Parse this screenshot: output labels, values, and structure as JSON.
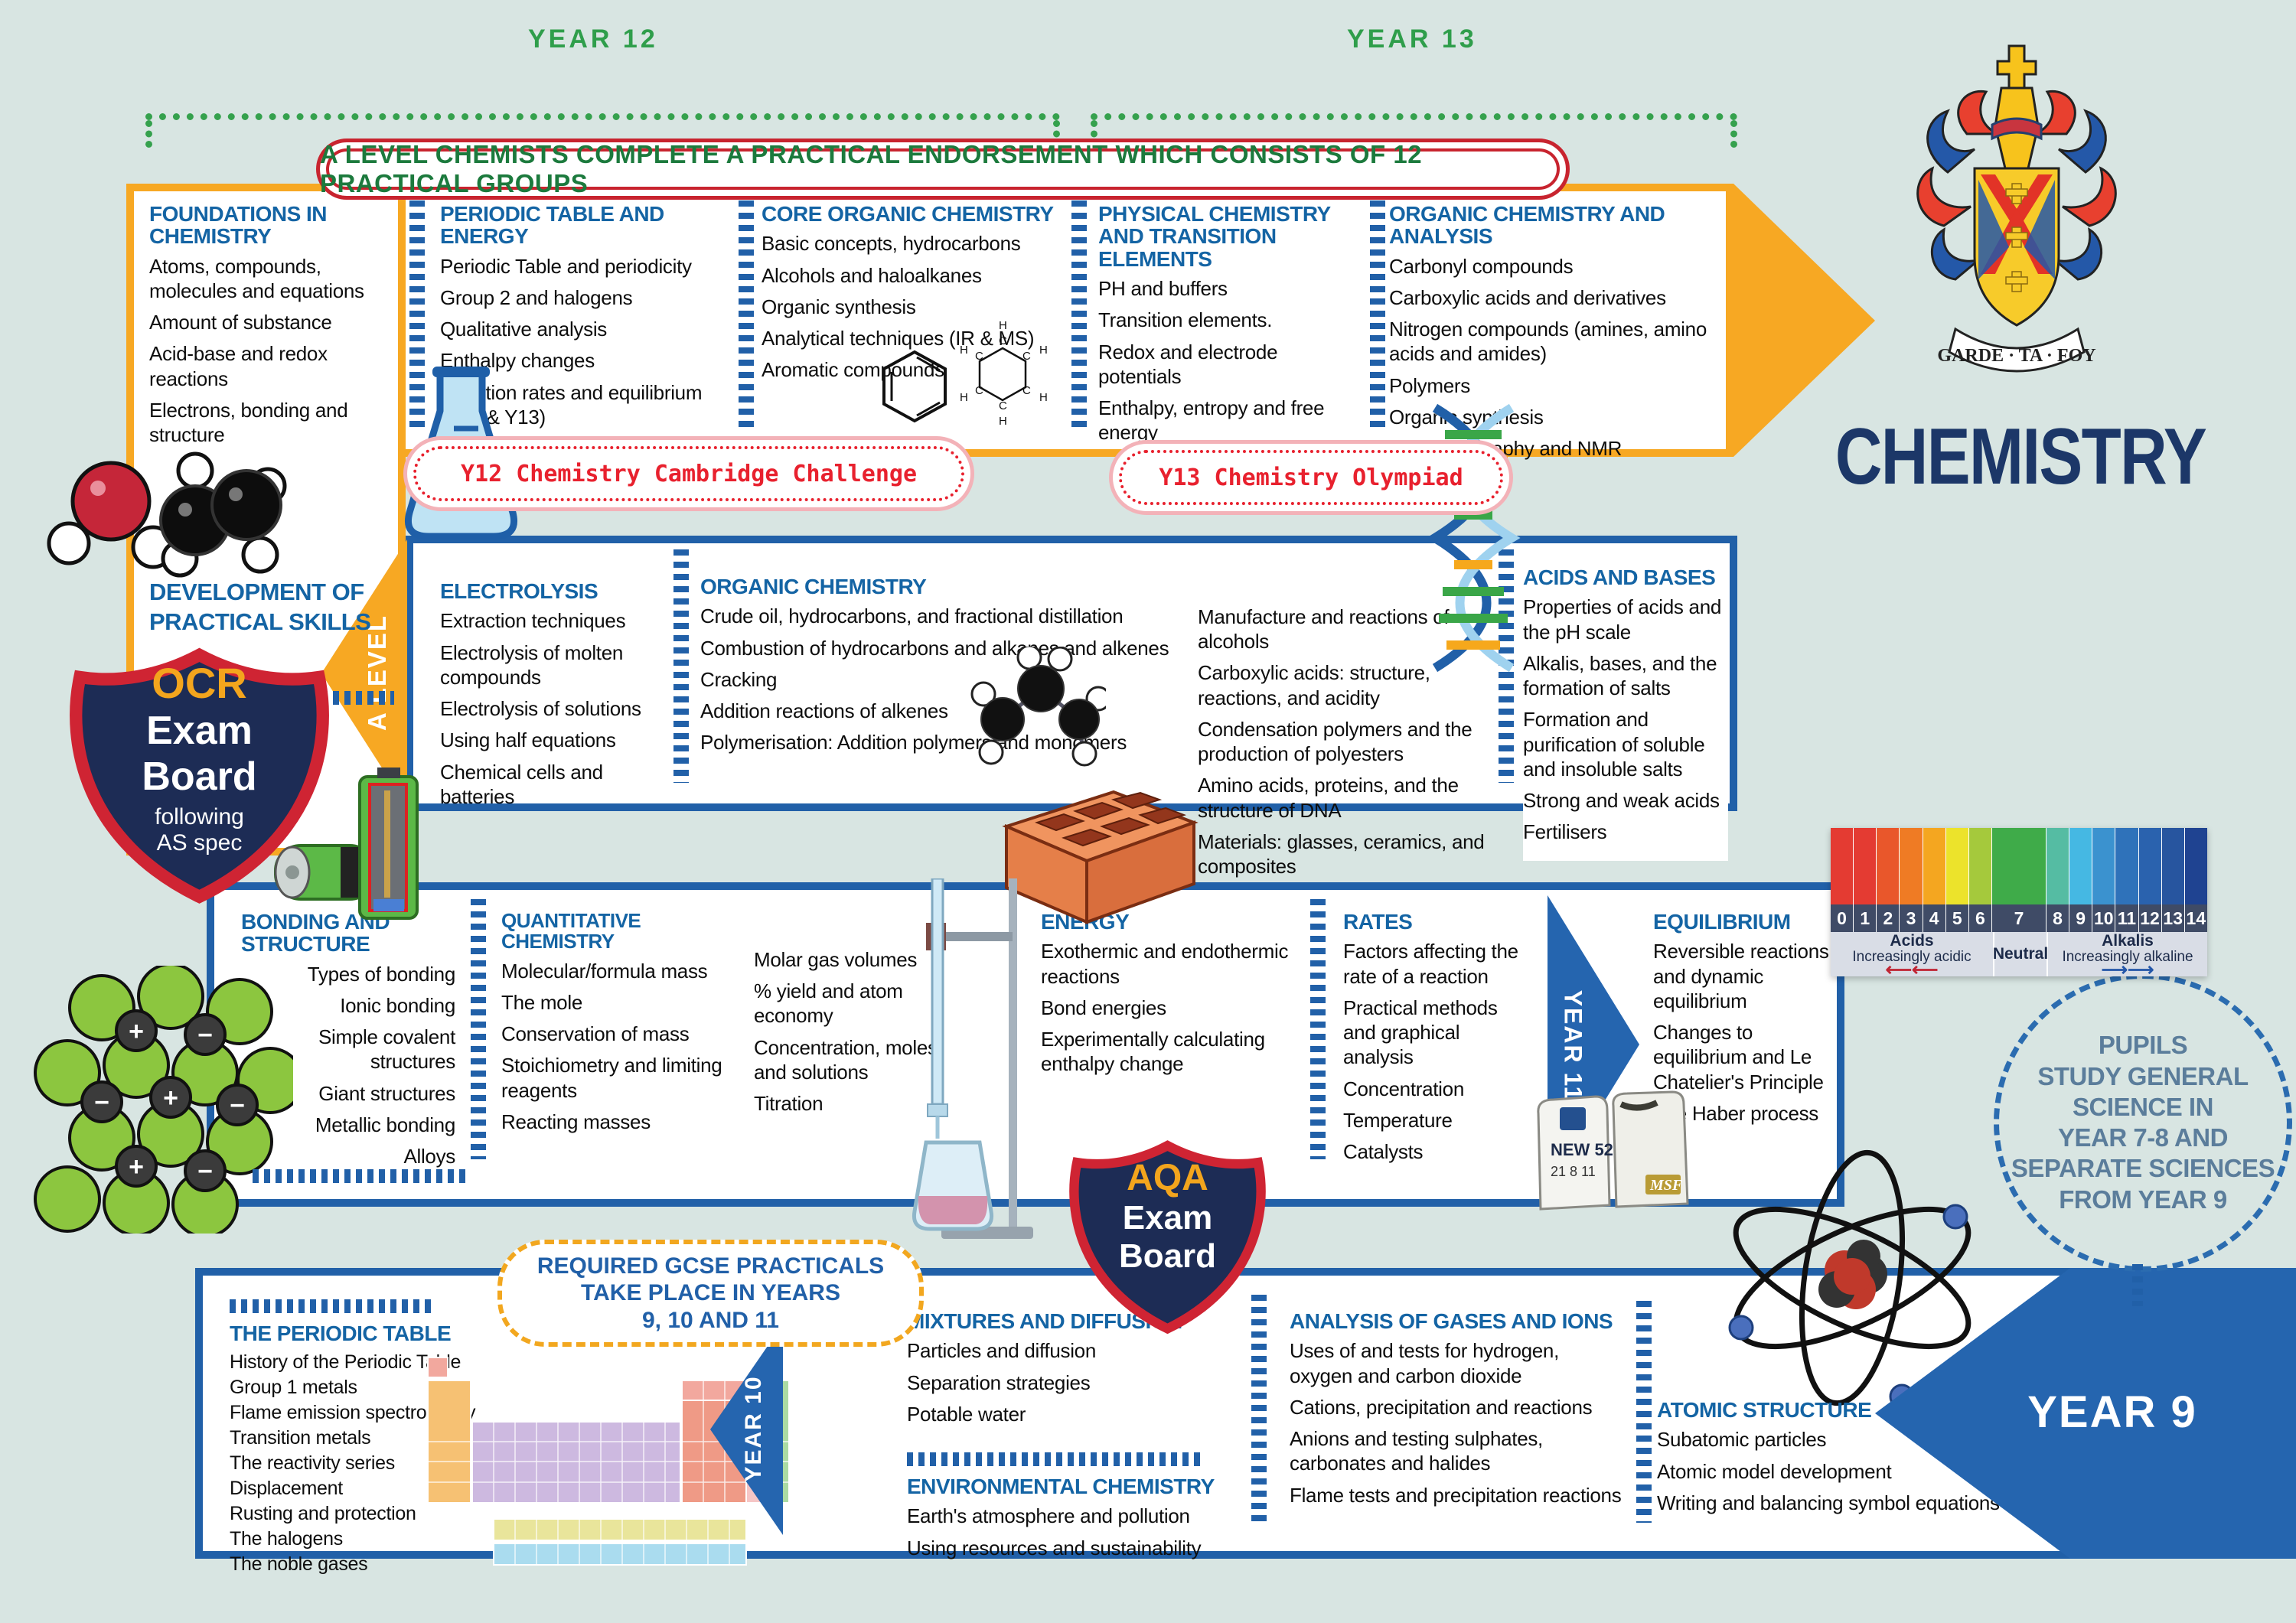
{
  "header": {
    "year12_label": "YEAR 12",
    "year13_label": "YEAR 13",
    "banner": "A LEVEL CHEMISTS COMPLETE A PRACTICAL ENDORSEMENT WHICH CONSISTS OF 12 PRACTICAL GROUPS",
    "title": "CHEMISTRY",
    "crest_motto": "GARDE · TA · FOY"
  },
  "challenges": {
    "y12": "Y12 Chemistry Cambridge Challenge",
    "y13": "Y13 Chemistry Olympiad"
  },
  "alevel": {
    "arrow_label": "A LEVEL",
    "practical_skills_title": "DEVELOPMENT OF PRACTICAL SKILLS",
    "row1": [
      {
        "title": "FOUNDATIONS IN CHEMISTRY",
        "items": [
          "Atoms, compounds, molecules and equations",
          "Amount of substance",
          "Acid-base and redox reactions",
          "Electrons, bonding and structure"
        ]
      },
      {
        "title": "PERIODIC TABLE AND ENERGY",
        "items": [
          "Periodic Table and periodicity",
          "Group 2 and halogens",
          "Qualitative analysis",
          "Enthalpy changes",
          "Reaction rates and equilibrium (Y12 & Y13)"
        ]
      },
      {
        "title": "CORE ORGANIC CHEMISTRY",
        "items": [
          "Basic concepts, hydrocarbons",
          "Alcohols and haloalkanes",
          "Organic synthesis",
          "Analytical techniques (IR & MS)",
          "Aromatic compounds"
        ]
      },
      {
        "title": "PHYSICAL CHEMISTRY AND TRANSITION ELEMENTS",
        "items": [
          "PH and buffers",
          "Transition elements.",
          "Redox and electrode potentials",
          "Enthalpy, entropy and free energy"
        ]
      },
      {
        "title": "ORGANIC CHEMISTRY AND ANALYSIS",
        "items": [
          "Carbonyl compounds",
          "Carboxylic acids and derivatives",
          "Nitrogen compounds (amines, amino acids and amides)",
          "Polymers",
          "Organic synthesis",
          "Chromatography and NMR"
        ]
      }
    ],
    "row2": [
      {
        "title": "ELECTROLYSIS",
        "items": [
          "Extraction techniques",
          "Electrolysis of molten compounds",
          "Electrolysis of solutions",
          "Using half equations",
          "Chemical cells and batteries"
        ]
      },
      {
        "title": "ORGANIC CHEMISTRY",
        "items": [
          "Crude oil, hydrocarbons, and fractional distillation",
          "Combustion of hydrocarbons and alkanes and alkenes",
          "Cracking",
          "Addition reactions of alkenes",
          "Polymerisation: Addition polymers and monomers"
        ]
      },
      {
        "title": "",
        "items": [
          "Manufacture and reactions of alcohols",
          "Carboxylic acids: structure, reactions, and acidity",
          "Condensation polymers and the production of polyesters",
          "Amino acids, proteins, and the structure of DNA",
          "Materials: glasses, ceramics, and composites"
        ]
      },
      {
        "title": "ACIDS AND BASES",
        "items": [
          "Properties of acids and the pH scale",
          "Alkalis, bases, and the formation of salts",
          "Formation and purification of soluble and insoluble salts",
          "Strong and weak acids",
          "Fertilisers"
        ]
      }
    ]
  },
  "exam_boards": {
    "ocr": {
      "name": "OCR",
      "line2": "Exam",
      "line3": "Board",
      "note1": "following",
      "note2": "AS spec"
    },
    "aqa": {
      "name": "AQA",
      "line2": "Exam",
      "line3": "Board"
    }
  },
  "gcse": {
    "year11_label": "YEAR 11",
    "year10_label": "YEAR 10",
    "year9_label": "YEAR 9",
    "required_practicals_lines": [
      "REQUIRED GCSE PRACTICALS",
      "TAKE PLACE IN YEARS",
      "9, 10 AND 11"
    ],
    "row1": [
      {
        "title": "BONDING AND STRUCTURE",
        "items": [
          "Types of bonding",
          "Ionic bonding",
          "Simple covalent structures",
          "Giant structures",
          "Metallic bonding",
          "Alloys"
        ]
      },
      {
        "title": "QUANTITATIVE CHEMISTRY",
        "items": [
          "Molecular/formula mass",
          "The mole",
          "Conservation of mass",
          "Stoichiometry and limiting reagents",
          "Reacting masses"
        ]
      },
      {
        "title": "",
        "items": [
          "Molar gas volumes",
          "% yield and atom economy",
          "Concentration, moles and solutions",
          "Titration"
        ]
      },
      {
        "title": "ENERGY",
        "items": [
          "Exothermic and endothermic reactions",
          "Bond energies",
          "Experimentally calculating enthalpy change"
        ]
      },
      {
        "title": "RATES",
        "items": [
          "Factors affecting the rate of a reaction",
          "Practical methods and graphical analysis",
          "Concentration",
          "Temperature",
          "Catalysts"
        ]
      },
      {
        "title": "EQUILIBRIUM",
        "items": [
          "Reversible reactions and dynamic equilibrium",
          "Changes to equilibrium and Le Chatelier's Principle",
          "The Haber process"
        ]
      }
    ],
    "row2": [
      {
        "title": "THE PERIODIC TABLE",
        "items": [
          "History of the Periodic Table",
          "Group 1 metals",
          "Flame emission spectroscopy",
          "Transition metals",
          "The reactivity series",
          "Displacement",
          "Rusting and protection",
          "The halogens",
          "The noble gases"
        ]
      },
      {
        "title": "MIXTURES AND DIFFUSION",
        "items": [
          "Particles and diffusion",
          "Separation strategies",
          "Potable water"
        ]
      },
      {
        "title": "ENVIRONMENTAL CHEMISTRY",
        "items": [
          "Earth's atmosphere and pollution",
          "Using resources and sustainability"
        ]
      },
      {
        "title": "ANALYSIS OF GASES AND IONS",
        "items": [
          "Uses of and tests for hydrogen, oxygen and carbon dioxide",
          "Cations, precipitation and reactions",
          "Anions and testing sulphates, carbonates and halides",
          "Flame tests and precipitation reactions"
        ]
      },
      {
        "title": "ATOMIC STRUCTURE",
        "items": [
          "Subatomic particles",
          "Atomic model development",
          "Writing and balancing symbol equations"
        ]
      }
    ]
  },
  "pupils_note_lines": [
    "PUPILS",
    "STUDY GENERAL",
    "SCIENCE IN",
    "YEAR 7-8 AND",
    "SEPARATE SCIENCES",
    "FROM YEAR 9"
  ],
  "fertiliser_bags": {
    "bag1_line1": "NEW 52",
    "bag1_line2": "21 8 11",
    "bag2_label": "MSF"
  },
  "ph_scale": {
    "numbers": [
      "0",
      "1",
      "2",
      "3",
      "4",
      "5",
      "6",
      "7",
      "8",
      "9",
      "10",
      "11",
      "12",
      "13",
      "14"
    ],
    "colors": [
      "#e43b32",
      "#e43b32",
      "#e9572b",
      "#ef7b24",
      "#f4a620",
      "#ece32b",
      "#a5c93c",
      "#3fab49",
      "#55bca3",
      "#45b8e3",
      "#3b92cf",
      "#2f72ba",
      "#2a62ae",
      "#27559f",
      "#1f4391"
    ],
    "acids_label": "Acids",
    "acids_sub": "Increasingly acidic",
    "neutral_label": "Neutral",
    "alkalis_label": "Alkalis",
    "alkalis_sub": "Increasingly alkaline"
  }
}
